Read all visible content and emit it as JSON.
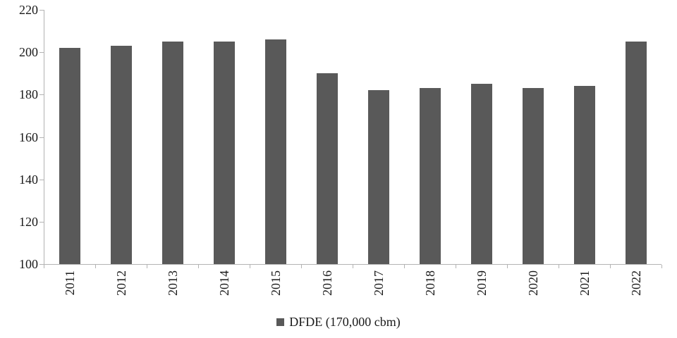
{
  "chart_data": {
    "type": "bar",
    "categories": [
      "2011",
      "2012",
      "2013",
      "2014",
      "2015",
      "2016",
      "2017",
      "2018",
      "2019",
      "2020",
      "2021",
      "2022"
    ],
    "values": [
      202,
      203,
      205,
      205,
      206,
      190,
      182,
      183,
      185,
      183,
      184,
      205
    ],
    "series_name": "DFDE (170,000 cbm)",
    "xlabel": "",
    "ylabel": "",
    "ylim": [
      100,
      220
    ],
    "yticks": [
      100,
      120,
      140,
      160,
      180,
      200,
      220
    ],
    "grid": false,
    "legend_position": "bottom",
    "bar_color": "#595959",
    "axis_color": "#b3b3b3",
    "text_color": "#1a1a1a"
  },
  "legend": {
    "label": "DFDE (170,000 cbm)"
  }
}
